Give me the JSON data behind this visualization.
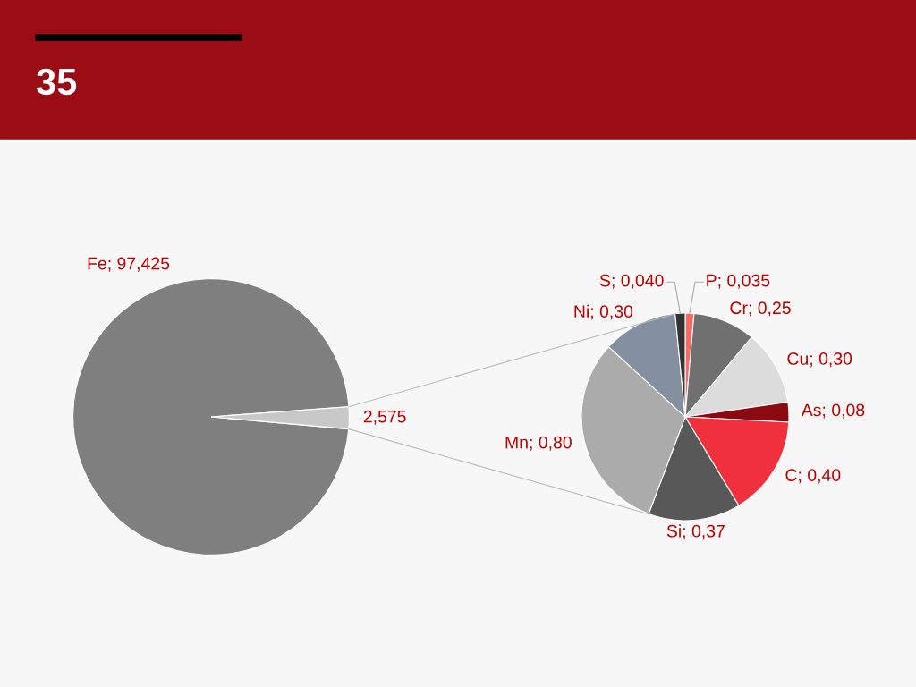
{
  "chart_data": [
    {
      "type": "pie",
      "title": "35",
      "categories": [
        "Fe",
        null
      ],
      "values": [
        97.425,
        2.575
      ],
      "value_labels": [
        "97,425",
        "2,575"
      ],
      "colors": [
        "#7f7f7f",
        "#c8c8c8"
      ]
    },
    {
      "type": "pie",
      "categories": [
        "P",
        "Cr",
        "Cu",
        "As",
        "C",
        "Si",
        "Mn",
        "Ni",
        "S"
      ],
      "values": [
        0.035,
        0.25,
        0.3,
        0.08,
        0.4,
        0.37,
        0.8,
        0.3,
        0.04
      ],
      "value_labels": [
        "0,035",
        "0,25",
        "0,30",
        "0,08",
        "0,40",
        "0,37",
        "0,80",
        "0,30",
        "0,040"
      ],
      "colors": [
        "#ff6666",
        "#707070",
        "#dcdcdc",
        "#8b0a12",
        "#f0303c",
        "#585858",
        "#ababab",
        "#8490a0",
        "#333333"
      ]
    }
  ]
}
